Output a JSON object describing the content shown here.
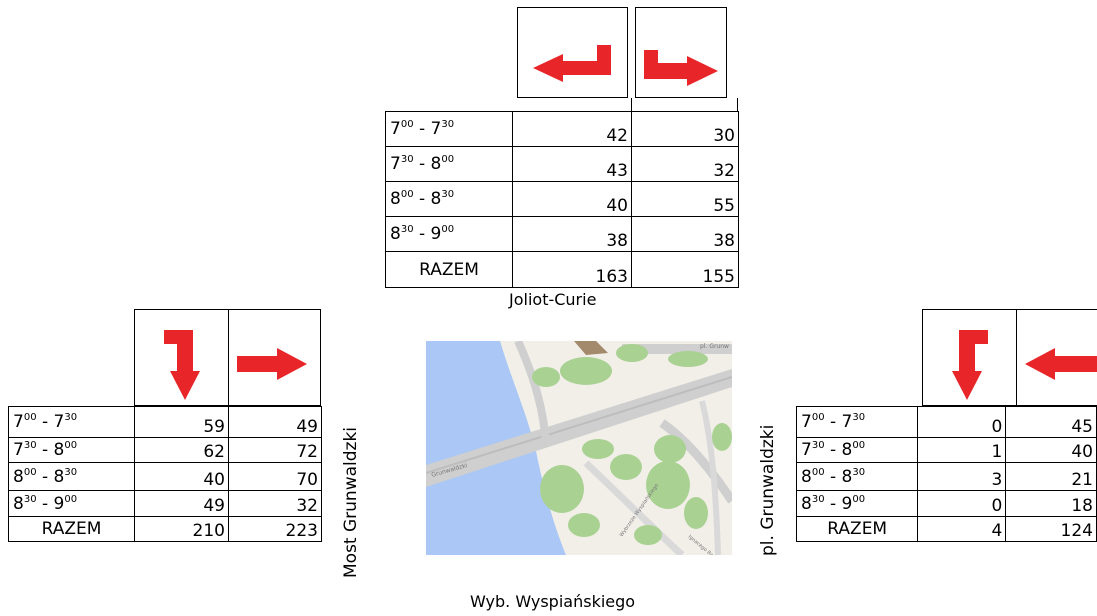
{
  "colors": {
    "arrow": "#e8262a",
    "water": "#aac7f5",
    "land": "#f2efe9",
    "green": "#a9d192",
    "road": "#cfcfcf",
    "building": "#a48a6c"
  },
  "top": {
    "name": "Joliot-Curie",
    "arrows": [
      "arrow-left-turn-icon",
      "arrow-right-turn-icon"
    ],
    "rows": [
      {
        "t1": "7",
        "s1": "00",
        "t2": "7",
        "s2": "30",
        "a": "42",
        "b": "30"
      },
      {
        "t1": "7",
        "s1": "30",
        "t2": "8",
        "s2": "00",
        "a": "43",
        "b": "32"
      },
      {
        "t1": "8",
        "s1": "00",
        "t2": "8",
        "s2": "30",
        "a": "40",
        "b": "55"
      },
      {
        "t1": "8",
        "s1": "30",
        "t2": "9",
        "s2": "00",
        "a": "38",
        "b": "38"
      }
    ],
    "total_label": "RAZEM",
    "total_a": "163",
    "total_b": "155"
  },
  "left": {
    "name": "Most Grunwaldzki",
    "arrows": [
      "arrow-down-turn-icon",
      "arrow-right-icon"
    ],
    "rows": [
      {
        "t1": "7",
        "s1": "00",
        "t2": "7",
        "s2": "30",
        "a": "59",
        "b": "49"
      },
      {
        "t1": "7",
        "s1": "30",
        "t2": "8",
        "s2": "00",
        "a": "62",
        "b": "72"
      },
      {
        "t1": "8",
        "s1": "00",
        "t2": "8",
        "s2": "30",
        "a": "40",
        "b": "70"
      },
      {
        "t1": "8",
        "s1": "30",
        "t2": "9",
        "s2": "00",
        "a": "49",
        "b": "32"
      }
    ],
    "total_label": "RAZEM",
    "total_a": "210",
    "total_b": "223"
  },
  "right": {
    "name": "pl. Grunwaldzki",
    "arrows": [
      "arrow-down-turn-icon",
      "arrow-left-icon"
    ],
    "rows": [
      {
        "t1": "7",
        "s1": "00",
        "t2": "7",
        "s2": "30",
        "a": "0",
        "b": "45"
      },
      {
        "t1": "7",
        "s1": "30",
        "t2": "8",
        "s2": "00",
        "a": "1",
        "b": "40"
      },
      {
        "t1": "8",
        "s1": "00",
        "t2": "8",
        "s2": "30",
        "a": "3",
        "b": "21"
      },
      {
        "t1": "8",
        "s1": "30",
        "t2": "9",
        "s2": "00",
        "a": "0",
        "b": "18"
      }
    ],
    "total_label": "RAZEM",
    "total_a": "4",
    "total_b": "124"
  },
  "bottom": {
    "name": "Wyb. Wyspiańskiego"
  },
  "map": {
    "street_labels": [
      "pl. Grunw",
      "Grunwaldzki",
      "Wybrzeże Wyspiańskiego",
      "Ignacego Banacha"
    ]
  }
}
